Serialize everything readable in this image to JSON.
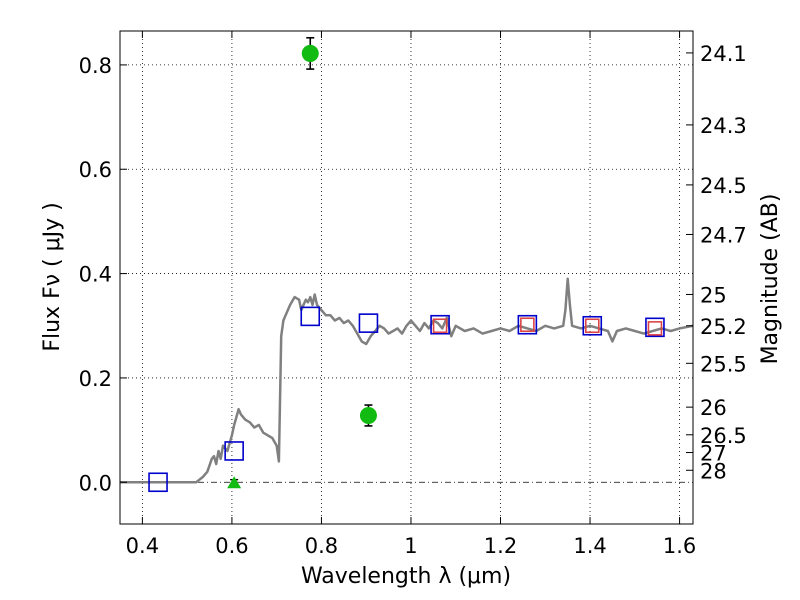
{
  "chart_data": {
    "type": "scatter",
    "xlabel": "Wavelength  λ (μm)",
    "ylabel": "Flux  Fν  ( μJy )",
    "ylabel_right": "Magnitude (AB)",
    "xlim": [
      0.35,
      1.63
    ],
    "ylim": [
      -0.08,
      0.865
    ],
    "grid": true,
    "x_ticks": [
      0.4,
      0.6,
      0.8,
      1.0,
      1.2,
      1.4,
      1.6
    ],
    "x_tick_labels": [
      "0.4",
      "0.6",
      "0.8",
      "1",
      "1.2",
      "1.4",
      "1.6"
    ],
    "y_ticks": [
      0.0,
      0.2,
      0.4,
      0.6,
      0.8
    ],
    "y_tick_labels": [
      "0.0",
      "0.2",
      "0.4",
      "0.6",
      "0.8"
    ],
    "right_ticks": [
      {
        "label": "24.1",
        "flux": 0.823
      },
      {
        "label": "24.3",
        "flux": 0.685
      },
      {
        "label": "24.5",
        "flux": 0.57
      },
      {
        "label": "24.7",
        "flux": 0.475
      },
      {
        "label": "25",
        "flux": 0.36
      },
      {
        "label": "25.2",
        "flux": 0.3
      },
      {
        "label": "25.5",
        "flux": 0.228
      },
      {
        "label": "26",
        "flux": 0.144
      },
      {
        "label": "26.5",
        "flux": 0.091
      },
      {
        "label": "27",
        "flux": 0.057
      },
      {
        "label": "28",
        "flux": 0.023
      }
    ],
    "series": [
      {
        "name": "model SED",
        "kind": "line",
        "color": "#808080",
        "x": [
          0.35,
          0.52,
          0.535,
          0.545,
          0.555,
          0.56,
          0.565,
          0.57,
          0.575,
          0.58,
          0.59,
          0.6,
          0.605,
          0.61,
          0.615,
          0.62,
          0.63,
          0.64,
          0.65,
          0.66,
          0.67,
          0.68,
          0.69,
          0.7,
          0.705,
          0.71,
          0.715,
          0.72,
          0.73,
          0.74,
          0.75,
          0.755,
          0.76,
          0.765,
          0.77,
          0.775,
          0.78,
          0.785,
          0.79,
          0.8,
          0.81,
          0.82,
          0.83,
          0.84,
          0.85,
          0.86,
          0.87,
          0.88,
          0.89,
          0.9,
          0.91,
          0.92,
          0.93,
          0.94,
          0.95,
          0.96,
          0.97,
          0.98,
          0.99,
          1.0,
          1.01,
          1.02,
          1.03,
          1.04,
          1.05,
          1.06,
          1.07,
          1.08,
          1.09,
          1.1,
          1.12,
          1.14,
          1.16,
          1.18,
          1.2,
          1.22,
          1.24,
          1.26,
          1.28,
          1.3,
          1.32,
          1.34,
          1.345,
          1.35,
          1.355,
          1.36,
          1.38,
          1.4,
          1.42,
          1.44,
          1.45,
          1.46,
          1.48,
          1.5,
          1.52,
          1.54,
          1.56,
          1.58,
          1.6,
          1.63
        ],
        "y": [
          0.0,
          0.0,
          0.01,
          0.02,
          0.045,
          0.05,
          0.035,
          0.06,
          0.045,
          0.07,
          0.06,
          0.09,
          0.11,
          0.125,
          0.14,
          0.13,
          0.12,
          0.115,
          0.105,
          0.11,
          0.095,
          0.09,
          0.085,
          0.07,
          0.04,
          0.28,
          0.31,
          0.32,
          0.34,
          0.355,
          0.35,
          0.33,
          0.34,
          0.35,
          0.345,
          0.355,
          0.34,
          0.36,
          0.34,
          0.33,
          0.32,
          0.32,
          0.31,
          0.315,
          0.305,
          0.31,
          0.3,
          0.285,
          0.27,
          0.265,
          0.28,
          0.29,
          0.3,
          0.295,
          0.285,
          0.29,
          0.295,
          0.285,
          0.3,
          0.31,
          0.3,
          0.29,
          0.305,
          0.295,
          0.31,
          0.305,
          0.295,
          0.315,
          0.28,
          0.3,
          0.29,
          0.295,
          0.285,
          0.29,
          0.295,
          0.29,
          0.3,
          0.295,
          0.29,
          0.3,
          0.295,
          0.3,
          0.33,
          0.39,
          0.34,
          0.3,
          0.295,
          0.3,
          0.295,
          0.29,
          0.27,
          0.29,
          0.295,
          0.29,
          0.285,
          0.29,
          0.295,
          0.29,
          0.295,
          0.3
        ]
      },
      {
        "name": "model photometry",
        "kind": "open-square",
        "color": "#0000cc",
        "x": [
          0.435,
          0.605,
          0.775,
          0.905,
          1.065,
          1.26,
          1.405,
          1.545
        ],
        "y": [
          0.0,
          0.06,
          0.318,
          0.305,
          0.302,
          0.302,
          0.3,
          0.297
        ]
      },
      {
        "name": "observed photometry (red squares)",
        "kind": "open-square-small",
        "color": "#dd4444",
        "x": [
          1.065,
          1.26,
          1.405,
          1.545
        ],
        "y": [
          0.3,
          0.302,
          0.3,
          0.295
        ]
      },
      {
        "name": "detections",
        "kind": "filled-circle",
        "color": "#11bb11",
        "x": [
          0.775,
          0.905
        ],
        "y": [
          0.822,
          0.128
        ],
        "yerr": [
          0.03,
          0.02
        ]
      },
      {
        "name": "upper limit",
        "kind": "triangle",
        "color": "#11bb11",
        "x": [
          0.605
        ],
        "y": [
          0.0
        ],
        "yerr": [
          0.005
        ]
      }
    ]
  }
}
